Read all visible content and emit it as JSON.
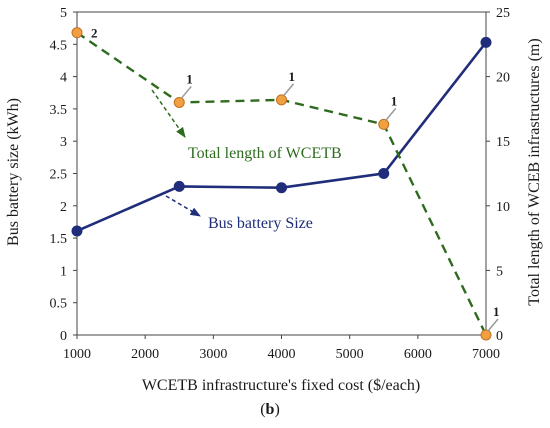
{
  "chart_data": {
    "type": "line",
    "xlabel": "WCETB infrastructure's fixed cost ($/each)",
    "ylabel": "Bus battery size (kWh)",
    "y2label": "Total length  of WCEB infrastructures  (m)",
    "caption": {
      "open": "(",
      "bold": "b",
      "close": ")"
    },
    "xlim": [
      1000,
      7000
    ],
    "ylim": [
      0,
      5
    ],
    "y2lim": [
      0,
      25
    ],
    "x_ticks": [
      "1000",
      "2000",
      "3000",
      "4000",
      "5000",
      "6000",
      "7000"
    ],
    "y_ticks": [
      "0",
      "0.5",
      "1",
      "1.5",
      "2",
      "2.5",
      "3",
      "3.5",
      "4",
      "4.5",
      "5"
    ],
    "y2_ticks": [
      "0",
      "5",
      "10",
      "15",
      "20",
      "25"
    ],
    "grid": false,
    "series": [
      {
        "name": "Bus battery Size",
        "axis": "left",
        "style": "solid",
        "color": "#1f2d7a",
        "marker_color": "#1f2d7a",
        "x": [
          1000,
          2500,
          4000,
          5500,
          7000
        ],
        "y": [
          1.61,
          2.3,
          2.28,
          2.5,
          4.53
        ]
      },
      {
        "name": "Total length  of WCETB",
        "axis": "right",
        "style": "dashed",
        "color": "#2e6b1f",
        "marker_color": "#f0a040",
        "marker_edge": "#c07020",
        "x": [
          1000,
          2500,
          4000,
          5500,
          7000
        ],
        "y": [
          23.4,
          18.0,
          18.2,
          16.3,
          0.0
        ],
        "point_labels": [
          "2",
          "1",
          "1",
          "1",
          "1"
        ]
      }
    ],
    "annotations": [
      {
        "text": "Total length  of WCETB",
        "color": "#2e6b1f"
      },
      {
        "text": "Bus battery Size",
        "color": "#1f2d7a"
      }
    ]
  }
}
